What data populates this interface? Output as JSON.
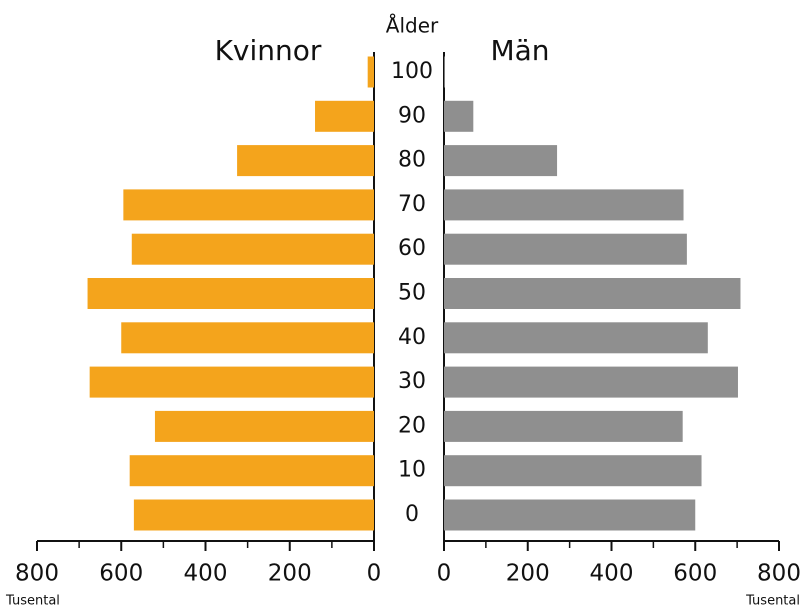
{
  "chart_data": {
    "type": "pyramid",
    "y_label": "Ålder",
    "x_label": "Tusental",
    "categories": [
      "0",
      "10",
      "20",
      "30",
      "40",
      "50",
      "60",
      "70",
      "80",
      "90",
      "100"
    ],
    "series": [
      {
        "name": "Kvinnor",
        "color": "#f4a41c",
        "values": [
          570,
          580,
          520,
          675,
          600,
          680,
          575,
          595,
          325,
          140,
          15
        ]
      },
      {
        "name": "Män",
        "color": "#8f8f8f",
        "values": [
          600,
          615,
          570,
          702,
          630,
          708,
          580,
          572,
          270,
          70,
          2
        ]
      }
    ],
    "xlim": [
      0,
      800
    ],
    "xticks": [
      0,
      200,
      400,
      600,
      800
    ],
    "xticks_minor": [
      100,
      300,
      500,
      700
    ]
  }
}
